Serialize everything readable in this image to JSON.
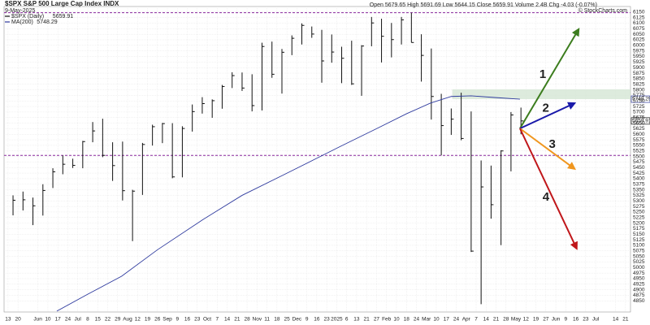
{
  "chart_data": {
    "type": "hlc",
    "title": "$SPX S&P 500 Large Cap Index  INDX",
    "subtitle": "9-May-2025",
    "quote": "Open 5679.65  High 5691.69  Low 5644.15  Close 5659.91  Volume 2.4B  Chg -4.03 (-0.07%)",
    "source": "© StockCharts.com",
    "grid": true,
    "xlim": [
      -0.4,
      62.5
    ],
    "ylim": [
      4800,
      6175
    ],
    "xticks": [
      {
        "value": 0,
        "label": "13"
      },
      {
        "value": 1,
        "label": "20"
      },
      {
        "value": 3,
        "label": "Jun"
      },
      {
        "value": 4,
        "label": "10"
      },
      {
        "value": 5,
        "label": "17"
      },
      {
        "value": 6,
        "label": "24"
      },
      {
        "value": 7,
        "label": "Jul"
      },
      {
        "value": 8,
        "label": "8"
      },
      {
        "value": 9,
        "label": "15"
      },
      {
        "value": 10,
        "label": "22"
      },
      {
        "value": 11,
        "label": "29"
      },
      {
        "value": 12,
        "label": "Aug"
      },
      {
        "value": 13,
        "label": "12"
      },
      {
        "value": 14,
        "label": "19"
      },
      {
        "value": 15,
        "label": "26"
      },
      {
        "value": 16,
        "label": "Sep"
      },
      {
        "value": 17,
        "label": "9"
      },
      {
        "value": 18,
        "label": "16"
      },
      {
        "value": 19,
        "label": "23"
      },
      {
        "value": 20,
        "label": "Oct"
      },
      {
        "value": 21,
        "label": "7"
      },
      {
        "value": 22,
        "label": "14"
      },
      {
        "value": 23,
        "label": "21"
      },
      {
        "value": 24,
        "label": "28"
      },
      {
        "value": 25,
        "label": "Nov"
      },
      {
        "value": 26,
        "label": "11"
      },
      {
        "value": 27,
        "label": "18"
      },
      {
        "value": 28,
        "label": "25"
      },
      {
        "value": 29,
        "label": "Dec"
      },
      {
        "value": 30,
        "label": "9"
      },
      {
        "value": 31,
        "label": "16"
      },
      {
        "value": 32,
        "label": "23"
      },
      {
        "value": 33,
        "label": "2025"
      },
      {
        "value": 34,
        "label": "6"
      },
      {
        "value": 35,
        "label": "13"
      },
      {
        "value": 36,
        "label": "21"
      },
      {
        "value": 37,
        "label": "27"
      },
      {
        "value": 38,
        "label": "Feb"
      },
      {
        "value": 39,
        "label": "10"
      },
      {
        "value": 40,
        "label": "18"
      },
      {
        "value": 41,
        "label": "24"
      },
      {
        "value": 42,
        "label": "Mar"
      },
      {
        "value": 43,
        "label": "10"
      },
      {
        "value": 44,
        "label": "17"
      },
      {
        "value": 45,
        "label": "24"
      },
      {
        "value": 46,
        "label": "Apr"
      },
      {
        "value": 47,
        "label": "7"
      },
      {
        "value": 48,
        "label": "14"
      },
      {
        "value": 49,
        "label": "21"
      },
      {
        "value": 50,
        "label": "28"
      },
      {
        "value": 51,
        "label": "May"
      },
      {
        "value": 52,
        "label": "12"
      },
      {
        "value": 53,
        "label": "19"
      },
      {
        "value": 54,
        "label": "27"
      },
      {
        "value": 55,
        "label": "Jun"
      },
      {
        "value": 56,
        "label": "9"
      },
      {
        "value": 57,
        "label": "16"
      },
      {
        "value": 58,
        "label": "23"
      },
      {
        "value": 59,
        "label": "Jul"
      },
      {
        "value": 61,
        "label": "14"
      },
      {
        "value": 62,
        "label": "21"
      }
    ],
    "yticks": [
      4850,
      4875,
      4900,
      4925,
      4950,
      4975,
      5000,
      5025,
      5050,
      5075,
      5100,
      5125,
      5150,
      5175,
      5200,
      5225,
      5250,
      5275,
      5300,
      5325,
      5350,
      5375,
      5400,
      5425,
      5450,
      5475,
      5500,
      5525,
      5550,
      5575,
      5600,
      5625,
      5650,
      5675,
      5700,
      5725,
      5750,
      5775,
      5800,
      5825,
      5850,
      5875,
      5900,
      5925,
      5950,
      5975,
      6000,
      6025,
      6050,
      6075,
      6100,
      6125,
      6150
    ],
    "series": [
      {
        "name": "$SPX (Daily)",
        "last_label": "5659.91",
        "color": "#111111",
        "x": [
          0.5,
          1.5,
          2.5,
          3.5,
          4.5,
          5.5,
          6.5,
          7.5,
          8.5,
          9.5,
          10.5,
          11.5,
          12.5,
          13.5,
          14.5,
          15.5,
          16.5,
          17.5,
          18.5,
          19.5,
          20.5,
          21.5,
          22.5,
          23.5,
          24.5,
          25.5,
          26.5,
          27.5,
          28.5,
          29.5,
          30.5,
          31.5,
          32.5,
          33.5,
          34.5,
          35.5,
          36.5,
          37.5,
          38.5,
          39.5,
          40.5,
          41.5,
          42.5,
          43.5,
          44.5,
          45.5,
          46.5,
          47.5,
          48.5,
          49.5,
          50.5,
          51.5
        ],
        "high": [
          5325,
          5342,
          5315,
          5375,
          5447,
          5505,
          5490,
          5570,
          5655,
          5670,
          5564,
          5567,
          5350,
          5561,
          5643,
          5651,
          5650,
          5636,
          5734,
          5767,
          5757,
          5822,
          5879,
          5878,
          5870,
          6012,
          6017,
          5984,
          6045,
          6099,
          6085,
          6070,
          6049,
          5994,
          6021,
          6001,
          6128,
          6120,
          6101,
          6128,
          6147,
          6050,
          5986,
          5782,
          5716,
          5787,
          5703,
          5482,
          5459,
          5528,
          5700,
          5720
        ],
        "low": [
          5235,
          5257,
          5191,
          5234,
          5358,
          5420,
          5448,
          5447,
          5564,
          5497,
          5390,
          5302,
          5119,
          5327,
          5549,
          5560,
          5402,
          5406,
          5612,
          5693,
          5674,
          5715,
          5808,
          5795,
          5703,
          5707,
          5854,
          5783,
          5956,
          6004,
          6034,
          5832,
          5922,
          5830,
          5822,
          5773,
          5996,
          5923,
          5946,
          6004,
          6013,
          5837,
          5666,
          5505,
          5597,
          5573,
          5070,
          4835,
          5220,
          5101,
          5433,
          5600
        ],
        "close": [
          5303,
          5305,
          5278,
          5347,
          5431,
          5465,
          5460,
          5567,
          5615,
          5505,
          5459,
          5346,
          5344,
          5554,
          5634,
          5648,
          5408,
          5626,
          5702,
          5738,
          5751,
          5815,
          5864,
          5808,
          5729,
          5995,
          5870,
          5969,
          6032,
          6090,
          6051,
          5930,
          5970,
          5942,
          5827,
          5997,
          6101,
          6041,
          6026,
          6115,
          6013,
          5955,
          5770,
          5639,
          5668,
          5581,
          5074,
          5363,
          5283,
          5525,
          5687,
          5660
        ]
      },
      {
        "name": "MA(200)",
        "last_label": "5748.29",
        "color": "#2e3a9e",
        "x": [
          4.9,
          8,
          11.4,
          15,
          19.6,
          23.5,
          27.7,
          31,
          33.4,
          37,
          40,
          42.4,
          44.5,
          46.5,
          49,
          51.4
        ],
        "values": [
          4804,
          4880,
          4961,
          5080,
          5217,
          5325,
          5418,
          5492,
          5546,
          5625,
          5692,
          5740,
          5770,
          5773,
          5765,
          5758
        ]
      }
    ],
    "reference_lines": [
      {
        "value": 6147,
        "color": "#8a2a9e"
      },
      {
        "value": 5505,
        "color": "#8a2a9e"
      }
    ],
    "zone": {
      "x": [
        44.6,
        62.5
      ],
      "y": [
        5758,
        5802
      ],
      "color": "#d5e6d5"
    },
    "annotations": [
      {
        "label": "1",
        "color": "#3c7d1e",
        "x": [
          51.4,
          57.3
        ],
        "y": [
          5626,
          6073
        ]
      },
      {
        "label": "2",
        "color": "#1a1aaa",
        "x": [
          51.4,
          56.9
        ],
        "y": [
          5626,
          5740
        ]
      },
      {
        "label": "3",
        "color": "#f0961e",
        "x": [
          51.4,
          56.9
        ],
        "y": [
          5626,
          5444
        ]
      },
      {
        "label": "4",
        "color": "#c0161a",
        "x": [
          51.4,
          57.1
        ],
        "y": [
          5626,
          5085
        ]
      }
    ]
  }
}
